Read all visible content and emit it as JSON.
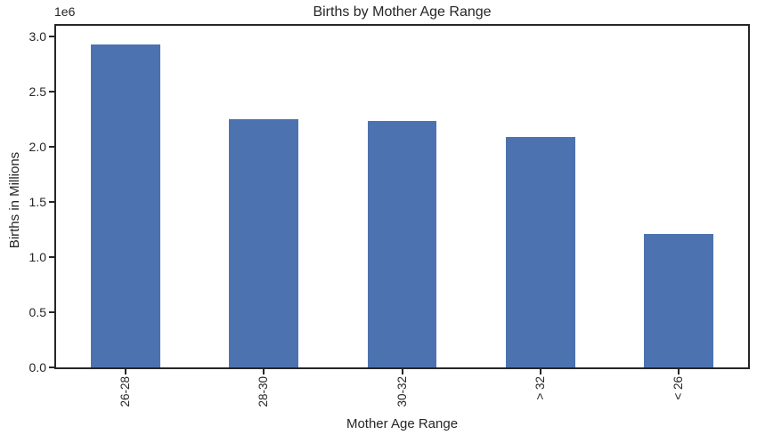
{
  "chart_data": {
    "type": "bar",
    "title": "Births by Mother Age Range",
    "xlabel": "Mother Age Range",
    "ylabel": "Births in Millions",
    "y_offset_label": "1e6",
    "categories": [
      "26-28",
      "28-30",
      "30-32",
      "> 32",
      "< 26"
    ],
    "values": [
      2930000,
      2255000,
      2240000,
      2090000,
      1210000
    ],
    "ylim": [
      0,
      3100000
    ],
    "y_ticks": [
      {
        "value": 0,
        "label": "0.0"
      },
      {
        "value": 500000,
        "label": "0.5"
      },
      {
        "value": 1000000,
        "label": "1.0"
      },
      {
        "value": 1500000,
        "label": "1.5"
      },
      {
        "value": 2000000,
        "label": "2.0"
      },
      {
        "value": 2500000,
        "label": "2.5"
      },
      {
        "value": 3000000,
        "label": "3.0"
      }
    ],
    "grid": false,
    "legend": "none",
    "bar_width_fraction": 0.5,
    "x_tick_rotation_deg": 90,
    "colors": {
      "bar": "#4C72B0",
      "axis": "#262626",
      "text": "#262626"
    }
  }
}
